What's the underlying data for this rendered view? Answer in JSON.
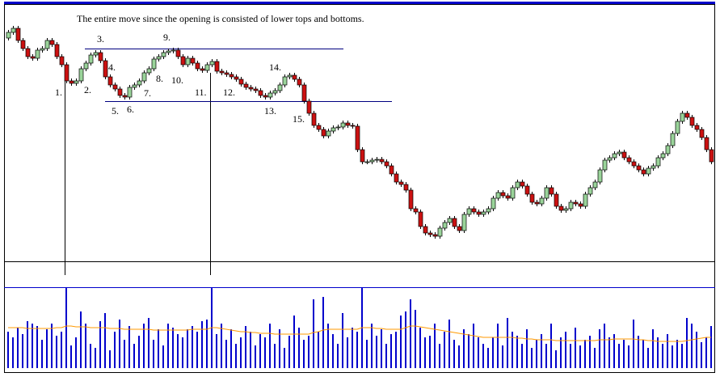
{
  "chart_data": {
    "type": "candlestick",
    "title": "The entire move since the opening is consisted of lower tops and bottoms.",
    "annotations": [
      "1.",
      "2.",
      "3.",
      "4.",
      "5.",
      "6.",
      "7.",
      "8.",
      "9.",
      "10.",
      "11.",
      "12.",
      "13.",
      "14.",
      "15."
    ],
    "ylim": [
      0,
      317
    ],
    "volume_ylim": [
      0,
      100
    ],
    "levels": [
      262,
      197
    ],
    "up_color": "#9ad49a",
    "down_color": "#cc1111",
    "volume_color": "#0000cc",
    "volume_ma_color": "#ff9900",
    "level_color": "#000080",
    "open": [
      275,
      282,
      287,
      272,
      262,
      252,
      250,
      260,
      262,
      272,
      267,
      252,
      242,
      222,
      219,
      222,
      237,
      244,
      254,
      257,
      247,
      227,
      217,
      212,
      204,
      202,
      214,
      217,
      222,
      232,
      237,
      249,
      252,
      257,
      259,
      260,
      252,
      242,
      250,
      244,
      237,
      235,
      242,
      246,
      234,
      232,
      230,
      227,
      224,
      218,
      214,
      212,
      210,
      204,
      202,
      207,
      210,
      217,
      227,
      229,
      224,
      217,
      197,
      182,
      167,
      162,
      154,
      160,
      164,
      165,
      170,
      167,
      166,
      137,
      122,
      122,
      124,
      125,
      122,
      117,
      107,
      97,
      94,
      87,
      64,
      60,
      42,
      34,
      32,
      30,
      40,
      47,
      52,
      42,
      37,
      57,
      64,
      60,
      57,
      60,
      64,
      77,
      84,
      80,
      77,
      90,
      97,
      92,
      82,
      72,
      70,
      77,
      90,
      82,
      67,
      62,
      64,
      72,
      70,
      67,
      82,
      90,
      97,
      112,
      124,
      127,
      132,
      134,
      127,
      122,
      117,
      112,
      107,
      114,
      117,
      127,
      132,
      142,
      157,
      172,
      182,
      177,
      167,
      162,
      152,
      137
    ],
    "high": [
      285,
      290,
      290,
      275,
      265,
      255,
      263,
      265,
      275,
      275,
      270,
      255,
      245,
      225,
      225,
      240,
      247,
      257,
      260,
      260,
      250,
      230,
      220,
      215,
      207,
      217,
      220,
      225,
      235,
      240,
      252,
      255,
      260,
      262,
      263,
      263,
      255,
      253,
      253,
      247,
      240,
      245,
      249,
      249,
      237,
      235,
      233,
      230,
      227,
      221,
      217,
      215,
      213,
      207,
      210,
      213,
      220,
      230,
      232,
      232,
      227,
      220,
      200,
      185,
      170,
      165,
      163,
      167,
      168,
      173,
      173,
      170,
      169,
      140,
      125,
      127,
      128,
      128,
      125,
      120,
      110,
      100,
      97,
      90,
      67,
      63,
      45,
      37,
      35,
      43,
      50,
      55,
      55,
      45,
      60,
      67,
      67,
      63,
      63,
      67,
      80,
      87,
      87,
      83,
      93,
      100,
      100,
      95,
      85,
      75,
      80,
      93,
      93,
      85,
      70,
      67,
      75,
      75,
      73,
      85,
      93,
      100,
      115,
      127,
      130,
      135,
      137,
      137,
      130,
      125,
      120,
      115,
      117,
      120,
      130,
      135,
      145,
      160,
      175,
      185,
      185,
      180,
      170,
      165,
      155,
      140
    ],
    "low": [
      272,
      279,
      269,
      259,
      249,
      247,
      247,
      257,
      259,
      264,
      249,
      239,
      219,
      216,
      216,
      219,
      234,
      241,
      251,
      244,
      224,
      214,
      209,
      201,
      199,
      199,
      211,
      214,
      219,
      229,
      234,
      246,
      249,
      254,
      256,
      249,
      239,
      239,
      241,
      234,
      232,
      232,
      239,
      231,
      229,
      227,
      224,
      221,
      215,
      211,
      209,
      207,
      201,
      199,
      199,
      204,
      207,
      214,
      224,
      221,
      214,
      194,
      179,
      164,
      159,
      151,
      151,
      157,
      161,
      162,
      164,
      163,
      134,
      119,
      119,
      119,
      121,
      119,
      114,
      104,
      94,
      91,
      84,
      61,
      57,
      39,
      31,
      29,
      27,
      27,
      37,
      44,
      39,
      34,
      34,
      54,
      57,
      54,
      54,
      57,
      61,
      74,
      77,
      74,
      74,
      87,
      89,
      79,
      69,
      67,
      67,
      74,
      79,
      64,
      59,
      59,
      61,
      67,
      64,
      64,
      79,
      87,
      94,
      109,
      121,
      124,
      129,
      124,
      119,
      114,
      109,
      104,
      104,
      111,
      114,
      124,
      129,
      139,
      154,
      169,
      174,
      164,
      159,
      149,
      134,
      119
    ],
    "close": [
      282,
      287,
      272,
      262,
      252,
      250,
      260,
      262,
      272,
      267,
      252,
      242,
      222,
      219,
      222,
      237,
      244,
      254,
      257,
      247,
      227,
      217,
      212,
      204,
      202,
      214,
      217,
      222,
      232,
      237,
      249,
      252,
      257,
      259,
      260,
      252,
      242,
      250,
      244,
      237,
      235,
      242,
      246,
      234,
      232,
      230,
      227,
      224,
      218,
      214,
      212,
      210,
      204,
      202,
      207,
      210,
      217,
      227,
      229,
      224,
      217,
      197,
      182,
      167,
      162,
      154,
      160,
      164,
      165,
      170,
      167,
      166,
      137,
      122,
      122,
      124,
      125,
      122,
      117,
      107,
      97,
      94,
      87,
      64,
      60,
      42,
      34,
      32,
      30,
      40,
      47,
      52,
      42,
      37,
      57,
      64,
      60,
      57,
      60,
      64,
      77,
      84,
      80,
      77,
      90,
      97,
      92,
      82,
      72,
      70,
      77,
      90,
      82,
      67,
      62,
      64,
      72,
      70,
      67,
      82,
      90,
      97,
      112,
      124,
      127,
      132,
      134,
      127,
      122,
      117,
      112,
      107,
      114,
      117,
      127,
      132,
      142,
      157,
      172,
      182,
      177,
      167,
      162,
      152,
      137,
      122
    ],
    "volume": [
      45,
      38,
      50,
      42,
      58,
      55,
      52,
      35,
      48,
      55,
      40,
      45,
      100,
      28,
      38,
      70,
      55,
      30,
      25,
      58,
      68,
      22,
      45,
      60,
      35,
      52,
      30,
      40,
      55,
      62,
      35,
      48,
      28,
      55,
      50,
      42,
      38,
      48,
      52,
      45,
      58,
      60,
      100,
      42,
      55,
      35,
      48,
      30,
      38,
      52,
      45,
      28,
      42,
      38,
      55,
      30,
      48,
      25,
      40,
      65,
      50,
      35,
      40,
      85,
      45,
      88,
      55,
      42,
      30,
      68,
      38,
      50,
      45,
      100,
      35,
      55,
      40,
      48,
      30,
      42,
      45,
      65,
      70,
      85,
      72,
      50,
      38,
      40,
      55,
      30,
      45,
      60,
      35,
      28,
      48,
      42,
      55,
      38,
      30,
      25,
      38,
      55,
      28,
      62,
      45,
      40,
      30,
      48,
      25,
      35,
      42,
      30,
      55,
      22,
      38,
      45,
      30,
      50,
      28,
      35,
      40,
      25,
      48,
      55,
      38,
      42,
      30,
      35,
      28,
      60,
      40,
      35,
      25,
      48,
      38,
      30,
      42,
      28,
      35,
      30,
      62,
      55,
      45,
      32,
      38,
      52
    ],
    "volume_ma": [
      50,
      50,
      50,
      50,
      49,
      49,
      49,
      49,
      49,
      49,
      50,
      50,
      52,
      52,
      51,
      51,
      51,
      50,
      50,
      50,
      50,
      49,
      49,
      49,
      48,
      48,
      48,
      48,
      48,
      48,
      47,
      47,
      47,
      47,
      47,
      47,
      47,
      47,
      48,
      48,
      48,
      48,
      50,
      50,
      49,
      48,
      47,
      46,
      45,
      45,
      44,
      44,
      43,
      43,
      43,
      42,
      42,
      42,
      42,
      42,
      42,
      42,
      42,
      44,
      45,
      47,
      48,
      48,
      48,
      48,
      48,
      48,
      48,
      50,
      50,
      50,
      49,
      49,
      48,
      48,
      48,
      48,
      50,
      52,
      52,
      51,
      50,
      49,
      48,
      47,
      46,
      45,
      44,
      43,
      42,
      41,
      40,
      39,
      38,
      38,
      38,
      38,
      38,
      38,
      38,
      37,
      37,
      36,
      36,
      35,
      35,
      35,
      35,
      34,
      34,
      34,
      34,
      34,
      34,
      34,
      34,
      34,
      35,
      35,
      35,
      36,
      36,
      36,
      36,
      36,
      35,
      35,
      34,
      34,
      33,
      33,
      33,
      33,
      33,
      33,
      34,
      35,
      36,
      37,
      38,
      38
    ]
  }
}
